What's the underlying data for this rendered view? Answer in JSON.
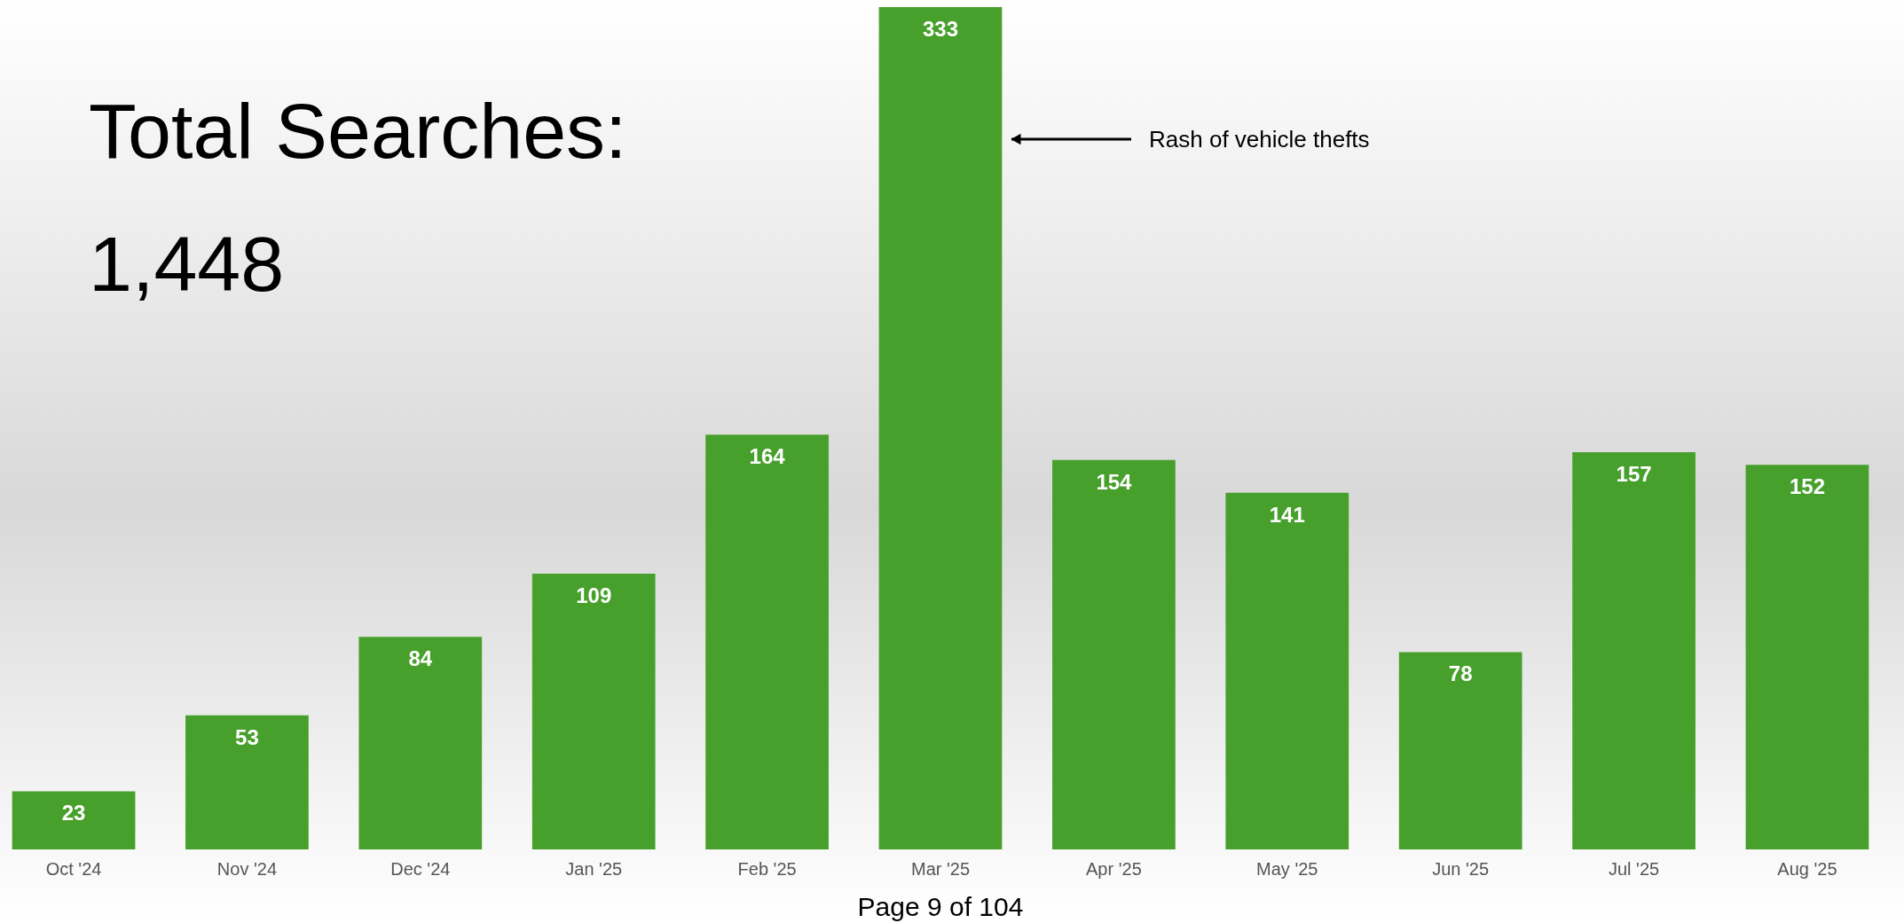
{
  "chart_data": {
    "type": "bar",
    "title": "Total Searches:",
    "subtitle": "1,448",
    "categories": [
      "Oct '24",
      "Nov '24",
      "Dec '24",
      "Jan '25",
      "Feb '25",
      "Mar '25",
      "Apr '25",
      "May '25",
      "Jun '25",
      "Jul '25",
      "Aug '25"
    ],
    "values": [
      23,
      53,
      84,
      109,
      164,
      333,
      154,
      141,
      78,
      157,
      152
    ],
    "color": "#47a02c",
    "data_labels": true,
    "annotations": [
      "Rash of vehicle thefts",
      "Page 9 of 104"
    ]
  }
}
